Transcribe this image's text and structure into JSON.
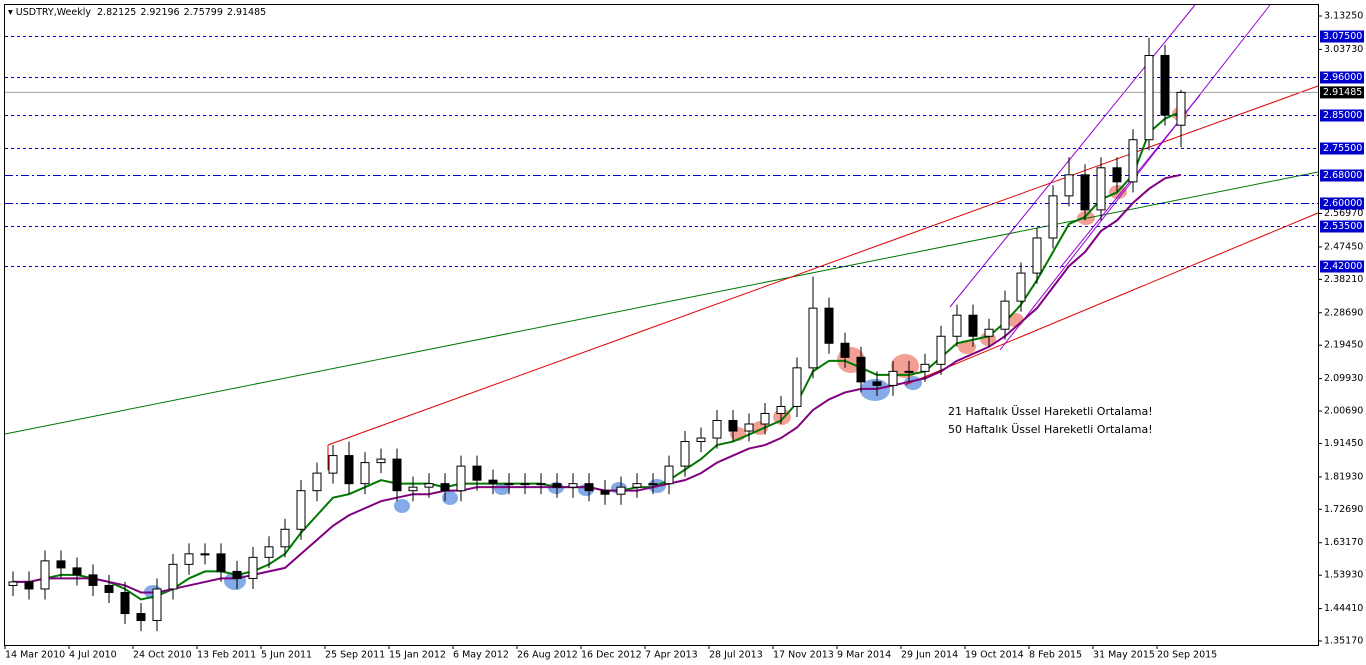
{
  "chart_data": {
    "type": "candlestick",
    "title": "USDTRY,Weekly",
    "open": [
      1.51,
      1.52,
      1.5,
      1.58,
      1.56,
      1.54,
      1.51,
      1.49,
      1.43,
      1.41,
      1.5,
      1.57,
      1.6,
      1.6,
      1.55,
      1.53,
      1.59,
      1.62,
      1.67,
      1.78,
      1.83,
      1.88,
      1.8,
      1.86,
      1.87,
      1.78,
      1.79,
      1.8,
      1.78,
      1.85,
      1.81,
      1.8,
      1.8,
      1.8,
      1.8,
      1.79,
      1.8,
      1.78,
      1.77,
      1.79,
      1.8,
      1.8,
      1.85,
      1.92,
      1.93,
      1.98,
      1.95,
      1.97,
      2.0,
      2.02,
      2.13,
      2.3,
      2.2,
      2.16,
      2.09,
      2.08,
      2.12,
      2.12,
      2.14,
      2.22,
      2.28,
      2.22,
      2.24,
      2.32,
      2.4,
      2.5,
      2.62,
      2.68,
      2.58,
      2.7,
      2.66,
      2.78,
      3.02,
      2.82125
    ],
    "high": [
      1.55,
      1.55,
      1.61,
      1.61,
      1.59,
      1.57,
      1.54,
      1.52,
      1.46,
      1.53,
      1.6,
      1.63,
      1.63,
      1.63,
      1.58,
      1.62,
      1.65,
      1.7,
      1.81,
      1.86,
      1.91,
      1.92,
      1.89,
      1.9,
      1.9,
      1.82,
      1.83,
      1.83,
      1.88,
      1.88,
      1.84,
      1.83,
      1.83,
      1.83,
      1.83,
      1.83,
      1.83,
      1.81,
      1.82,
      1.83,
      1.83,
      1.88,
      1.95,
      1.96,
      2.01,
      2.01,
      2.0,
      2.03,
      2.05,
      2.16,
      2.39,
      2.33,
      2.23,
      2.19,
      2.12,
      2.15,
      2.15,
      2.17,
      2.25,
      2.31,
      2.31,
      2.27,
      2.35,
      2.43,
      2.53,
      2.65,
      2.73,
      2.71,
      2.73,
      2.73,
      2.81,
      3.07,
      3.05,
      2.92196
    ],
    "low": [
      1.48,
      1.47,
      1.47,
      1.53,
      1.51,
      1.48,
      1.46,
      1.4,
      1.38,
      1.38,
      1.47,
      1.54,
      1.57,
      1.52,
      1.5,
      1.5,
      1.56,
      1.59,
      1.64,
      1.75,
      1.8,
      1.77,
      1.77,
      1.83,
      1.75,
      1.75,
      1.76,
      1.75,
      1.75,
      1.78,
      1.77,
      1.77,
      1.77,
      1.77,
      1.76,
      1.76,
      1.75,
      1.74,
      1.74,
      1.76,
      1.77,
      1.77,
      1.82,
      1.89,
      1.9,
      1.92,
      1.92,
      1.94,
      1.97,
      1.99,
      2.1,
      2.17,
      2.13,
      2.06,
      2.05,
      2.05,
      2.09,
      2.09,
      2.11,
      2.19,
      2.19,
      2.19,
      2.21,
      2.29,
      2.37,
      2.47,
      2.59,
      2.55,
      2.55,
      2.63,
      2.63,
      2.75,
      2.82,
      2.75799
    ],
    "close": [
      1.52,
      1.5,
      1.58,
      1.56,
      1.54,
      1.51,
      1.49,
      1.43,
      1.41,
      1.5,
      1.57,
      1.6,
      1.6,
      1.55,
      1.53,
      1.59,
      1.62,
      1.67,
      1.78,
      1.83,
      1.88,
      1.8,
      1.86,
      1.87,
      1.78,
      1.79,
      1.8,
      1.78,
      1.85,
      1.81,
      1.8,
      1.8,
      1.8,
      1.8,
      1.79,
      1.8,
      1.78,
      1.77,
      1.79,
      1.8,
      1.8,
      1.85,
      1.92,
      1.93,
      1.98,
      1.95,
      1.97,
      2.0,
      2.02,
      2.13,
      2.3,
      2.2,
      2.16,
      2.09,
      2.08,
      2.12,
      2.12,
      2.14,
      2.22,
      2.28,
      2.22,
      2.24,
      2.32,
      2.4,
      2.5,
      2.62,
      2.68,
      2.58,
      2.7,
      2.66,
      2.78,
      3.02,
      2.85,
      2.91485
    ],
    "series": [
      {
        "color": "#007800",
        "values": [
          1.52,
          1.52,
          1.53,
          1.54,
          1.54,
          1.53,
          1.52,
          1.5,
          1.47,
          1.48,
          1.5,
          1.53,
          1.55,
          1.55,
          1.54,
          1.55,
          1.57,
          1.6,
          1.66,
          1.71,
          1.76,
          1.77,
          1.79,
          1.81,
          1.8,
          1.8,
          1.8,
          1.79,
          1.8,
          1.8,
          1.8,
          1.8,
          1.8,
          1.8,
          1.79,
          1.79,
          1.79,
          1.78,
          1.78,
          1.79,
          1.79,
          1.81,
          1.84,
          1.87,
          1.91,
          1.92,
          1.94,
          1.96,
          1.98,
          2.03,
          2.12,
          2.15,
          2.15,
          2.13,
          2.11,
          2.11,
          2.11,
          2.12,
          2.16,
          2.2,
          2.21,
          2.22,
          2.26,
          2.31,
          2.38,
          2.46,
          2.54,
          2.56,
          2.61,
          2.63,
          2.68,
          2.8,
          2.84,
          2.86
        ]
      },
      {
        "color": "#800080",
        "values": [
          1.52,
          1.52,
          1.53,
          1.53,
          1.53,
          1.53,
          1.52,
          1.51,
          1.49,
          1.49,
          1.5,
          1.51,
          1.52,
          1.53,
          1.53,
          1.54,
          1.55,
          1.56,
          1.6,
          1.64,
          1.68,
          1.71,
          1.73,
          1.75,
          1.76,
          1.77,
          1.77,
          1.78,
          1.78,
          1.79,
          1.79,
          1.79,
          1.79,
          1.79,
          1.79,
          1.79,
          1.79,
          1.78,
          1.78,
          1.78,
          1.79,
          1.8,
          1.81,
          1.83,
          1.86,
          1.88,
          1.9,
          1.91,
          1.93,
          1.96,
          2.01,
          2.04,
          2.06,
          2.07,
          2.07,
          2.08,
          2.09,
          2.1,
          2.12,
          2.15,
          2.17,
          2.19,
          2.22,
          2.26,
          2.3,
          2.36,
          2.42,
          2.46,
          2.52,
          2.55,
          2.6,
          2.64,
          2.67,
          2.68
        ]
      }
    ],
    "x_labels": [
      "14 Mar 2010",
      "4 Jul 2010",
      "24 Oct 2010",
      "13 Feb 2011",
      "5 Jun 2011",
      "25 Sep 2011",
      "15 Jan 2012",
      "6 May 2012",
      "26 Aug 2012",
      "16 Dec 2012",
      "7 Apr 2013",
      "28 Jul 2013",
      "17 Nov 2013",
      "9 Mar 2014",
      "29 Jun 2014",
      "19 Oct 2014",
      "8 Feb 2015",
      "31 May 2015",
      "20 Sep 2015"
    ],
    "ylim": [
      1.3517,
      3.1325
    ],
    "yticks": [
      {
        "value": 3.1325,
        "label": "3.13250"
      },
      {
        "value": 3.0373,
        "label": "3.03730"
      },
      {
        "value": 2.5697,
        "label": "2.56970"
      },
      {
        "value": 2.4745,
        "label": "2.47450"
      },
      {
        "value": 2.3821,
        "label": "2.38210"
      },
      {
        "value": 2.2869,
        "label": "2.28690"
      },
      {
        "value": 2.1945,
        "label": "2.19450"
      },
      {
        "value": 2.0993,
        "label": "2.09930"
      },
      {
        "value": 2.0069,
        "label": "2.00690"
      },
      {
        "value": 1.9145,
        "label": "1.91450"
      },
      {
        "value": 1.8193,
        "label": "1.81930"
      },
      {
        "value": 1.7269,
        "label": "1.72690"
      },
      {
        "value": 1.6317,
        "label": "1.63170"
      },
      {
        "value": 1.5393,
        "label": "1.53930"
      },
      {
        "value": 1.4441,
        "label": "1.44410"
      },
      {
        "value": 1.3517,
        "label": "1.35170"
      }
    ],
    "levels": [
      {
        "value": 3.075,
        "label": "3.07500",
        "style": "dash"
      },
      {
        "value": 2.96,
        "label": "2.96000",
        "style": "dash"
      },
      {
        "value": 2.85,
        "label": "2.85000",
        "style": "dash"
      },
      {
        "value": 2.755,
        "label": "2.75500",
        "style": "dash"
      },
      {
        "value": 2.68,
        "label": "2.68000",
        "style": "dashdot"
      },
      {
        "value": 2.6,
        "label": "2.60000",
        "style": "dashdot"
      },
      {
        "value": 2.535,
        "label": "2.53500",
        "style": "dash"
      },
      {
        "value": 2.42,
        "label": "2.42000",
        "style": "dash"
      }
    ],
    "level_color": "#0000cd",
    "annotations": [
      "21 Haftalık Üssel Hareketli Ortalama!",
      "50 Haftalık Üssel Hareketli Ortalama!"
    ]
  }
}
